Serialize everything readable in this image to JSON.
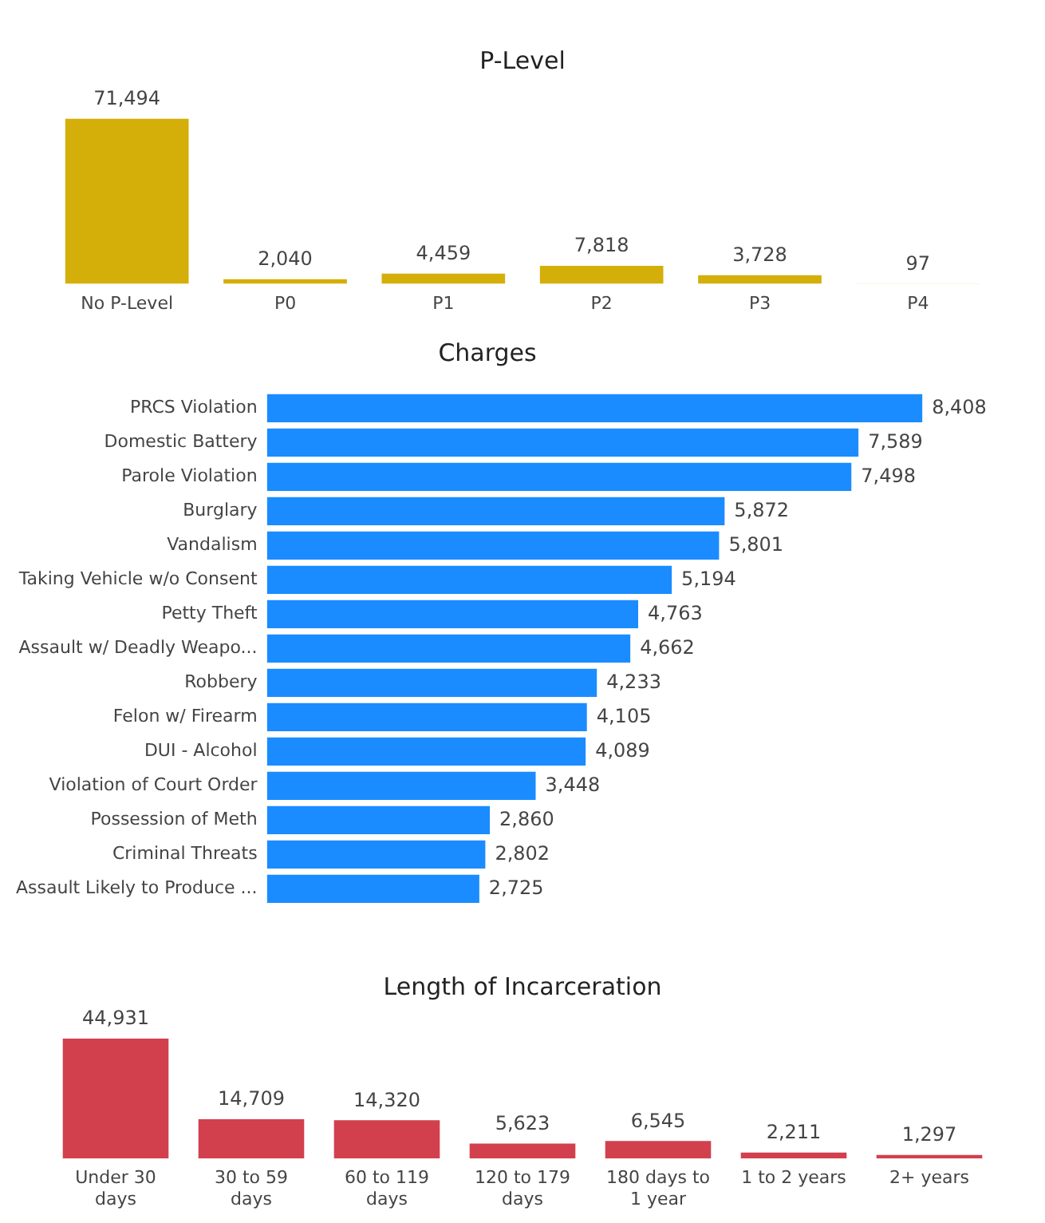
{
  "chart_data": [
    {
      "type": "bar",
      "title": "P-Level",
      "categories": [
        "No P-Level",
        "P0",
        "P1",
        "P2",
        "P3",
        "P4"
      ],
      "values": [
        71494,
        2040,
        4459,
        7818,
        3728,
        97
      ],
      "value_labels": [
        "71,494",
        "2,040",
        "4,459",
        "7,818",
        "3,728",
        "97"
      ],
      "color": "#d4af0a",
      "tick_labels": "x"
    },
    {
      "type": "bar",
      "orientation": "horizontal",
      "title": "Charges",
      "categories": [
        "PRCS Violation",
        "Domestic Battery",
        "Parole Violation",
        "Burglary",
        "Vandalism",
        "Taking Vehicle w/o Consent",
        "Petty Theft",
        "Assault w/ Deadly Weapo...",
        "Robbery",
        "Felon w/ Firearm",
        "DUI - Alcohol",
        "Violation of Court Order",
        "Possession of Meth",
        "Criminal Threats",
        "Assault Likely to Produce ..."
      ],
      "values": [
        8408,
        7589,
        7498,
        5872,
        5801,
        5194,
        4763,
        4662,
        4233,
        4105,
        4089,
        3448,
        2860,
        2802,
        2725
      ],
      "value_labels": [
        "8,408",
        "7,589",
        "7,498",
        "5,872",
        "5,801",
        "5,194",
        "4,763",
        "4,662",
        "4,233",
        "4,105",
        "4,089",
        "3,448",
        "2,860",
        "2,802",
        "2,725"
      ],
      "color": "#1a8cff",
      "tick_labels": "y"
    },
    {
      "type": "bar",
      "title": "Length of Incarceration",
      "categories": [
        "Under 30 days",
        "30 to 59 days",
        "60 to 119 days",
        "120 to 179 days",
        "180 days to 1 year",
        "1 to 2 years",
        "2+ years"
      ],
      "values": [
        44931,
        14709,
        14320,
        5623,
        6545,
        2211,
        1297
      ],
      "value_labels": [
        "44,931",
        "14,709",
        "14,320",
        "5,623",
        "6,545",
        "2,211",
        "1,297"
      ],
      "color": "#d2404e",
      "tick_labels": "x"
    }
  ]
}
